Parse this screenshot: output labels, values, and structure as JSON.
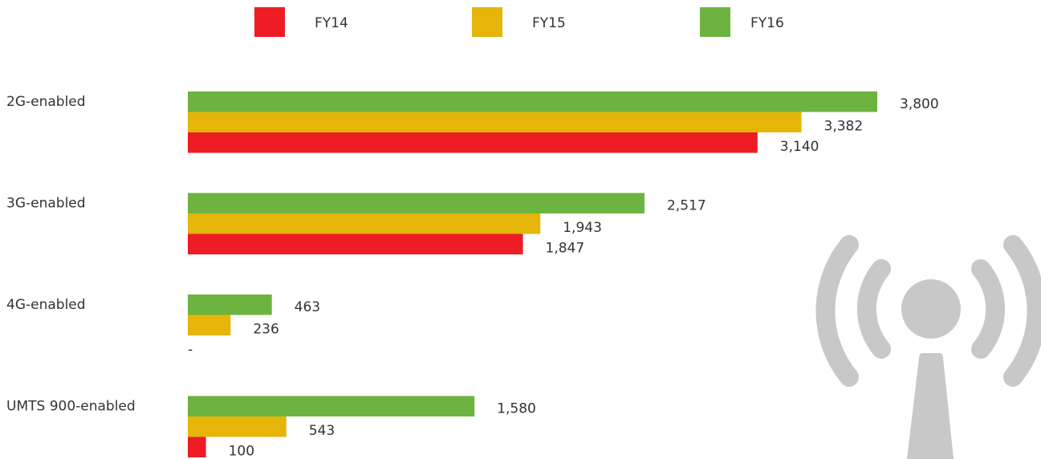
{
  "chart_data": {
    "type": "bar",
    "orientation": "horizontal",
    "categories": [
      "2G-enabled",
      "3G-enabled",
      "4G-enabled",
      "UMTS 900-enabled"
    ],
    "series": [
      {
        "name": "FY14",
        "color": "#ee1c25",
        "values": [
          3140,
          1847,
          null,
          100
        ],
        "value_labels": [
          "3,140",
          "1,847",
          "-",
          "100"
        ]
      },
      {
        "name": "FY15",
        "color": "#e6b50a",
        "values": [
          3382,
          1943,
          236,
          543
        ],
        "value_labels": [
          "3,382",
          "1,943",
          "236",
          "543"
        ]
      },
      {
        "name": "FY16",
        "color": "#6db33f",
        "values": [
          3800,
          2517,
          463,
          1580
        ],
        "value_labels": [
          "3,800",
          "2,517",
          "463",
          "1,580"
        ]
      }
    ],
    "legend": "top"
  }
}
